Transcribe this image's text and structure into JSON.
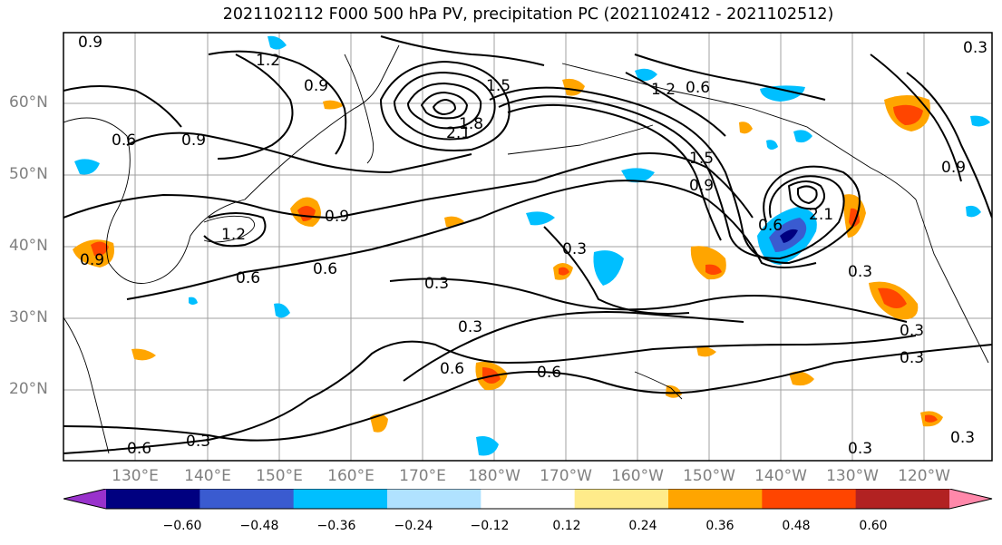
{
  "title": "2021102112 F000 500 hPa PV, precipitation PC (2021102412 - 2021102512)",
  "latitude_labels": [
    "60°N",
    "50°N",
    "40°N",
    "30°N",
    "20°N"
  ],
  "longitude_labels": [
    "130°E",
    "140°E",
    "150°E",
    "160°E",
    "170°E",
    "180°W",
    "170°W",
    "160°W",
    "150°W",
    "140°W",
    "130°W",
    "120°W"
  ],
  "contour_labels": [
    "0.3",
    "0.6",
    "0.9",
    "1.2",
    "1.5",
    "1.8",
    "2.1"
  ],
  "colorbar": {
    "ticks": [
      "−0.60",
      "−0.48",
      "−0.36",
      "−0.24",
      "−0.12",
      "0.12",
      "0.24",
      "0.36",
      "0.48",
      "0.60"
    ],
    "colors": [
      "#9932cc",
      "#000080",
      "#3a5bd0",
      "#00bfff",
      "#b0e2ff",
      "#ffffff",
      "#ffeb8a",
      "#ffa500",
      "#ff4500",
      "#b22222",
      "#ff88aa"
    ]
  }
}
